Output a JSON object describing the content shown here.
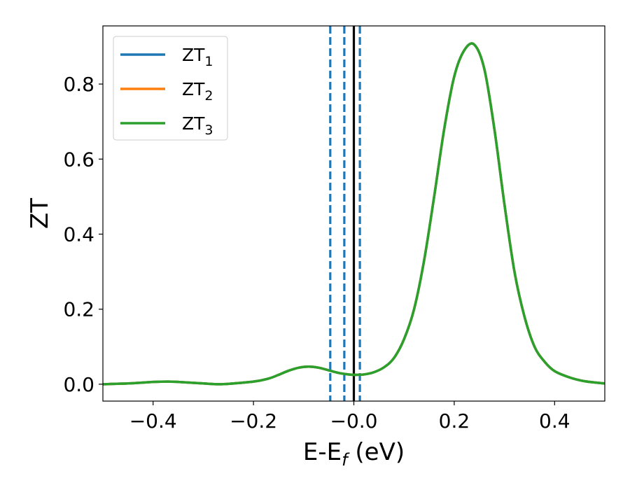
{
  "chart_data": {
    "type": "line",
    "title": "",
    "xlabel": {
      "base": "E-E",
      "sub": "f",
      "unit": " (eV)"
    },
    "ylabel": "ZT",
    "xlim": [
      -0.5,
      0.5
    ],
    "ylim": [
      -0.045,
      0.955
    ],
    "xticks": [
      -0.4,
      -0.2,
      0.0,
      0.2,
      0.4
    ],
    "xtick_labels": [
      "−0.4",
      "−0.2",
      "−0.0",
      "0.2",
      "0.4"
    ],
    "yticks": [
      0.0,
      0.2,
      0.4,
      0.6,
      0.8
    ],
    "ytick_labels": [
      "0.0",
      "0.2",
      "0.4",
      "0.6",
      "0.8"
    ],
    "grid": false,
    "legend_position": "top-left",
    "vlines": [
      {
        "x": -0.047,
        "style": "dashed",
        "color": "#1f77b4"
      },
      {
        "x": -0.019,
        "style": "dashed",
        "color": "#1f77b4"
      },
      {
        "x": 0.0,
        "style": "solid",
        "color": "#000000"
      },
      {
        "x": 0.012,
        "style": "dashed",
        "color": "#1f77b4"
      }
    ],
    "series": [
      {
        "name": "ZT",
        "sub": "1",
        "color": "#1f77b4"
      },
      {
        "name": "ZT",
        "sub": "2",
        "color": "#ff7f0e"
      },
      {
        "name": "ZT",
        "sub": "3",
        "color": "#2ca02c"
      }
    ],
    "x": [
      -0.5,
      -0.45,
      -0.4,
      -0.37,
      -0.35,
      -0.3,
      -0.27,
      -0.25,
      -0.2,
      -0.17,
      -0.15,
      -0.13,
      -0.11,
      -0.09,
      -0.07,
      -0.05,
      -0.03,
      -0.01,
      0.0,
      0.02,
      0.04,
      0.06,
      0.08,
      0.1,
      0.12,
      0.14,
      0.16,
      0.18,
      0.2,
      0.22,
      0.24,
      0.26,
      0.28,
      0.3,
      0.32,
      0.34,
      0.36,
      0.38,
      0.4,
      0.43,
      0.46,
      0.5
    ],
    "y": [
      0.0,
      0.002,
      0.006,
      0.007,
      0.006,
      0.002,
      0.0,
      0.001,
      0.007,
      0.015,
      0.025,
      0.036,
      0.044,
      0.047,
      0.044,
      0.037,
      0.03,
      0.026,
      0.025,
      0.026,
      0.032,
      0.045,
      0.07,
      0.12,
      0.2,
      0.33,
      0.5,
      0.68,
      0.82,
      0.89,
      0.905,
      0.84,
      0.68,
      0.48,
      0.3,
      0.18,
      0.1,
      0.06,
      0.035,
      0.018,
      0.008,
      0.002
    ]
  }
}
